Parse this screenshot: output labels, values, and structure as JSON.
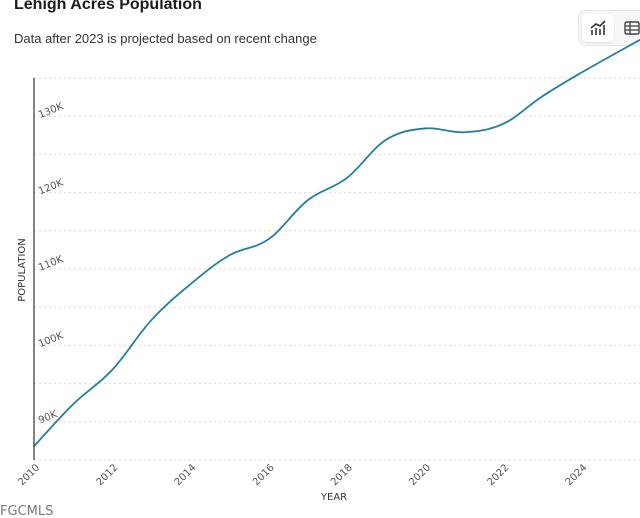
{
  "header": {
    "title": "Lehigh Acres Population",
    "subtitle": "Data after 2023 is projected based on recent change"
  },
  "view_toggle": {
    "chart_icon": "line-chart-icon",
    "table_icon": "table-grid-icon",
    "active": "chart"
  },
  "colors": {
    "line": "#1f7fa3",
    "grid": "#d9d9d9",
    "axis": "#333333"
  },
  "watermark": "FGCMLS",
  "chart_data": {
    "type": "line",
    "title": "Lehigh Acres Population",
    "subtitle": "Data after 2023 is projected based on recent change",
    "xlabel": "YEAR",
    "ylabel": "POPULATION",
    "xlim": [
      2010,
      2025.5
    ],
    "ylim": [
      85000,
      135000
    ],
    "x_ticks": [
      2010,
      2012,
      2014,
      2016,
      2018,
      2020,
      2022,
      2024
    ],
    "x_tick_labels": [
      "2010",
      "2012",
      "2014",
      "2016",
      "2018",
      "2020",
      "2022",
      "2024"
    ],
    "y_ticks": [
      90000,
      100000,
      110000,
      120000,
      130000
    ],
    "y_tick_labels": [
      "90K",
      "100K",
      "110K",
      "120K",
      "130K"
    ],
    "grid": true,
    "legend": "none",
    "series": [
      {
        "name": "Population",
        "x": [
          2010,
          2011,
          2012,
          2013,
          2014,
          2015,
          2016,
          2017,
          2018,
          2019,
          2020,
          2021,
          2022,
          2023,
          2024,
          2025.5
        ],
        "values": [
          86800,
          92300,
          96800,
          103300,
          108000,
          111800,
          113900,
          119000,
          121900,
          126900,
          128400,
          127900,
          129000,
          132600,
          135700,
          140000
        ]
      }
    ]
  }
}
